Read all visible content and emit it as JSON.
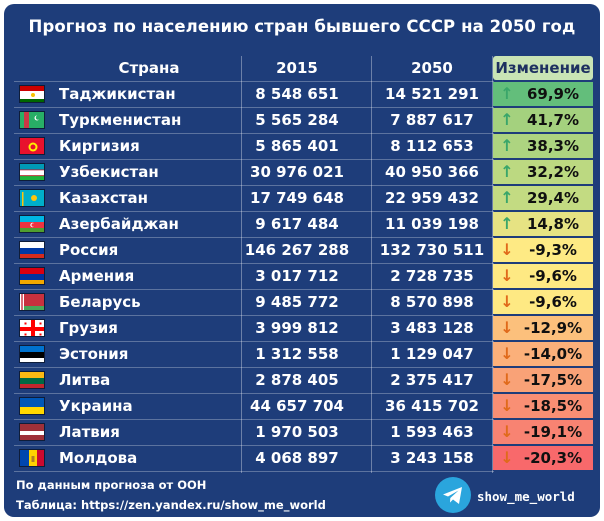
{
  "title": "Прогноз по населению стран бывшего СССР на 2050 год",
  "header": {
    "country": "Страна",
    "y2015": "2015",
    "y2050": "2050",
    "change": "Изменение"
  },
  "rows": [
    {
      "country": "Таджикистан",
      "y2015": "8 548 651",
      "y2050": "14 521 291",
      "change": "69,9%",
      "pct": 69.9,
      "dir": "up",
      "bg": "#63be7b",
      "flag": "tajikistan"
    },
    {
      "country": "Туркменистан",
      "y2015": "5 565 284",
      "y2050": "7 887 617",
      "change": "41,7%",
      "pct": 41.7,
      "dir": "up",
      "bg": "#a4d17e",
      "flag": "turkmenistan"
    },
    {
      "country": "Киргизия",
      "y2015": "5 865 401",
      "y2050": "8 112 653",
      "change": "38,3%",
      "pct": 38.3,
      "dir": "up",
      "bg": "#add480",
      "flag": "kyrgyzstan"
    },
    {
      "country": "Узбекистан",
      "y2015": "30 976 021",
      "y2050": "40 950 366",
      "change": "32,2%",
      "pct": 32.2,
      "dir": "up",
      "bg": "#bcd981",
      "flag": "uzbekistan"
    },
    {
      "country": "Казахстан",
      "y2015": "17 749 648",
      "y2050": "22 959 432",
      "change": "29,4%",
      "pct": 29.4,
      "dir": "up",
      "bg": "#c3db82",
      "flag": "kazakhstan"
    },
    {
      "country": "Азербайджан",
      "y2015": "9 617 484",
      "y2050": "11 039 198",
      "change": "14,8%",
      "pct": 14.8,
      "dir": "up",
      "bg": "#e6e383",
      "flag": "azerbaijan"
    },
    {
      "country": "Россия",
      "y2015": "146 267 288",
      "y2050": "132 730 511",
      "change": "-9,3%",
      "pct": -9.3,
      "dir": "down",
      "bg": "#feea84",
      "flag": "russia"
    },
    {
      "country": "Армения",
      "y2015": "3 017 712",
      "y2050": "2 728 735",
      "change": "-9,6%",
      "pct": -9.6,
      "dir": "down",
      "bg": "#fee983",
      "flag": "armenia"
    },
    {
      "country": "Беларусь",
      "y2015": "9 485 772",
      "y2050": "8 570 898",
      "change": "-9,6%",
      "pct": -9.6,
      "dir": "down",
      "bg": "#fee983",
      "flag": "belarus"
    },
    {
      "country": "Грузия",
      "y2015": "3 999 812",
      "y2050": "3 483 128",
      "change": "-12,9%",
      "pct": -12.9,
      "dir": "down",
      "bg": "#fcc07c",
      "flag": "georgia"
    },
    {
      "country": "Эстония",
      "y2015": "1 312 558",
      "y2050": "1 129 047",
      "change": "-14,0%",
      "pct": -14.0,
      "dir": "down",
      "bg": "#fbb07a",
      "flag": "estonia"
    },
    {
      "country": "Литва",
      "y2015": "2 878 405",
      "y2050": "2 375 417",
      "change": "-17,5%",
      "pct": -17.5,
      "dir": "down",
      "bg": "#f9a277",
      "flag": "lithuania"
    },
    {
      "country": "Украина",
      "y2015": "44 657 704",
      "y2050": "36 415 702",
      "change": "-18,5%",
      "pct": -18.5,
      "dir": "down",
      "bg": "#f98f74",
      "flag": "ukraine"
    },
    {
      "country": "Латвия",
      "y2015": "1 970 503",
      "y2050": "1 593 463",
      "change": "-19,1%",
      "pct": -19.1,
      "dir": "down",
      "bg": "#f88372",
      "flag": "latvia"
    },
    {
      "country": "Молдова",
      "y2015": "4 068 897",
      "y2050": "3 243 158",
      "change": "-20,3%",
      "pct": -20.3,
      "dir": "down",
      "bg": "#f8696b",
      "flag": "moldova"
    }
  ],
  "footer": {
    "source": "По данным прогноза от ООН",
    "table_link": "Таблица: https://zen.yandex.ru/show_me_world",
    "channel": "show_me_world"
  },
  "colors": {
    "background": "#1e3d7a",
    "up_arrow": "#3aa66a",
    "down_arrow": "#e06a1b",
    "telegram": "#2aa5dd"
  }
}
